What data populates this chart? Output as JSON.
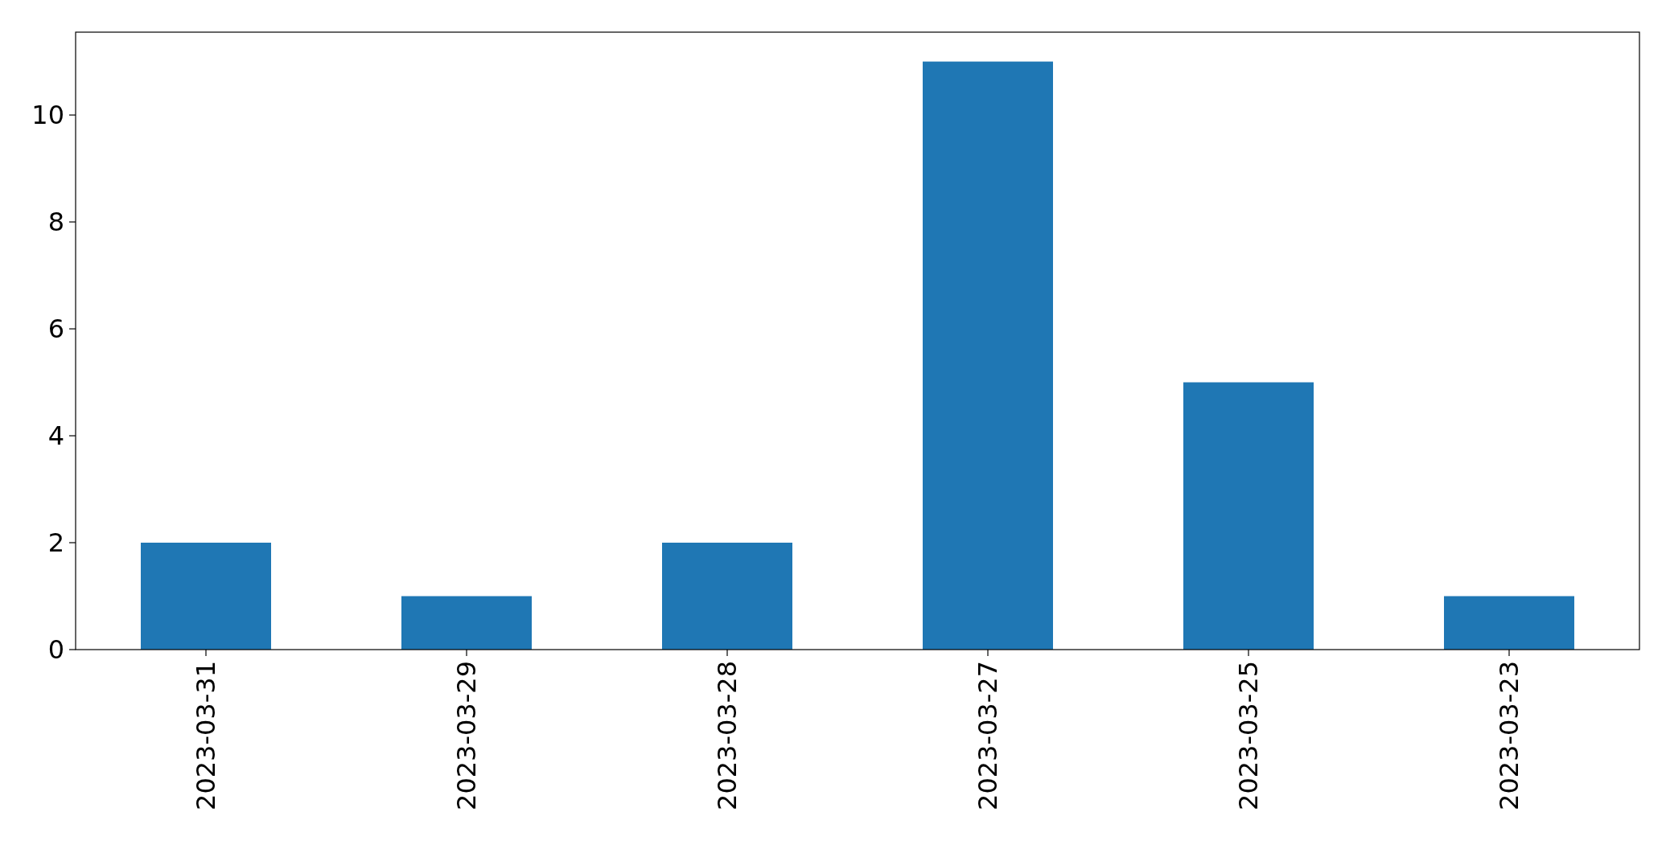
{
  "chart_data": {
    "type": "bar",
    "categories": [
      "2023-03-31",
      "2023-03-29",
      "2023-03-28",
      "2023-03-27",
      "2023-03-25",
      "2023-03-23"
    ],
    "values": [
      2,
      1,
      2,
      11,
      5,
      1
    ],
    "color": "#1f77b4",
    "ylim": [
      0,
      11.55
    ],
    "yticks": [
      0,
      2,
      4,
      6,
      8,
      10
    ],
    "grid": false
  }
}
